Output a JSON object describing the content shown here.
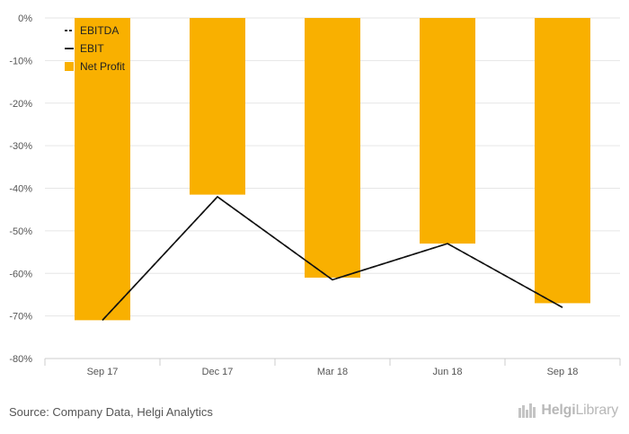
{
  "chart_data": {
    "type": "bar",
    "categories": [
      "Sep 17",
      "Dec 17",
      "Mar 18",
      "Jun 18",
      "Sep 18"
    ],
    "series": [
      {
        "name": "EBITDA",
        "kind": "line",
        "style": "dashed",
        "color": "#111111",
        "values": [
          -71,
          -42,
          -61.5,
          -53,
          -68
        ]
      },
      {
        "name": "EBIT",
        "kind": "line",
        "style": "solid",
        "color": "#111111",
        "values": [
          -71,
          -42,
          -61.5,
          -53,
          -68
        ]
      },
      {
        "name": "Net Profit",
        "kind": "bar",
        "color": "#F9B000",
        "values": [
          -71,
          -41.5,
          -61,
          -53,
          -67
        ]
      }
    ],
    "yticks": [
      "0%",
      "-10%",
      "-20%",
      "-30%",
      "-40%",
      "-50%",
      "-60%",
      "-70%",
      "-80%"
    ],
    "ylim": [
      -80,
      0
    ],
    "grid": true,
    "legend_position": "top-left"
  },
  "footer": {
    "source": "Source: Company Data, Helgi Analytics",
    "brand_prefix": "Helgi",
    "brand_suffix": "Library"
  }
}
